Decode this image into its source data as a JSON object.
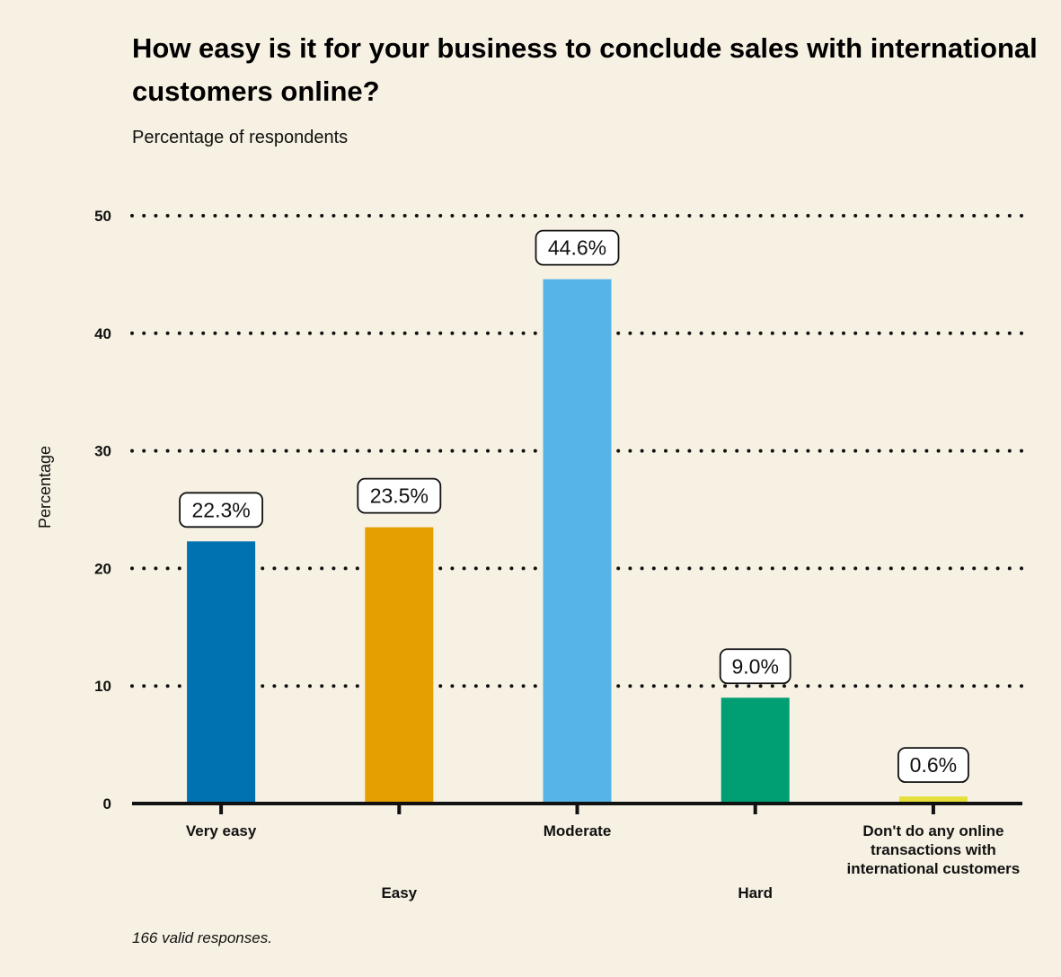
{
  "chart": {
    "title_lines": [
      "How easy is it for your business to conclude sales with international",
      "customers online?"
    ],
    "subtitle": "Percentage of respondents",
    "ylabel": "Percentage",
    "footnote": "166 valid responses."
  },
  "chart_data": {
    "type": "bar",
    "title": "How easy is it for your business to conclude sales with international customers online?",
    "subtitle": "Percentage of respondents",
    "xlabel": "",
    "ylabel": "Percentage",
    "ylim": [
      0,
      50
    ],
    "yticks": [
      0,
      10,
      20,
      30,
      40,
      50
    ],
    "grid": "dotted-horizontal",
    "categories": [
      "Very easy",
      "Easy",
      "Moderate",
      "Hard",
      "Don't do any online transactions with international customers"
    ],
    "category_label_lines": [
      [
        "Very easy"
      ],
      [
        "Easy"
      ],
      [
        "Moderate"
      ],
      [
        "Hard"
      ],
      [
        "Don't do any online",
        "transactions with",
        "international customers"
      ]
    ],
    "values": [
      22.3,
      23.5,
      44.6,
      9.0,
      0.6
    ],
    "data_labels": [
      "22.3%",
      "23.5%",
      "44.6%",
      "9.0%",
      "0.6%"
    ],
    "colors": [
      "#0072b2",
      "#e69f00",
      "#56b4e9",
      "#009e73",
      "#e5e03a"
    ]
  }
}
